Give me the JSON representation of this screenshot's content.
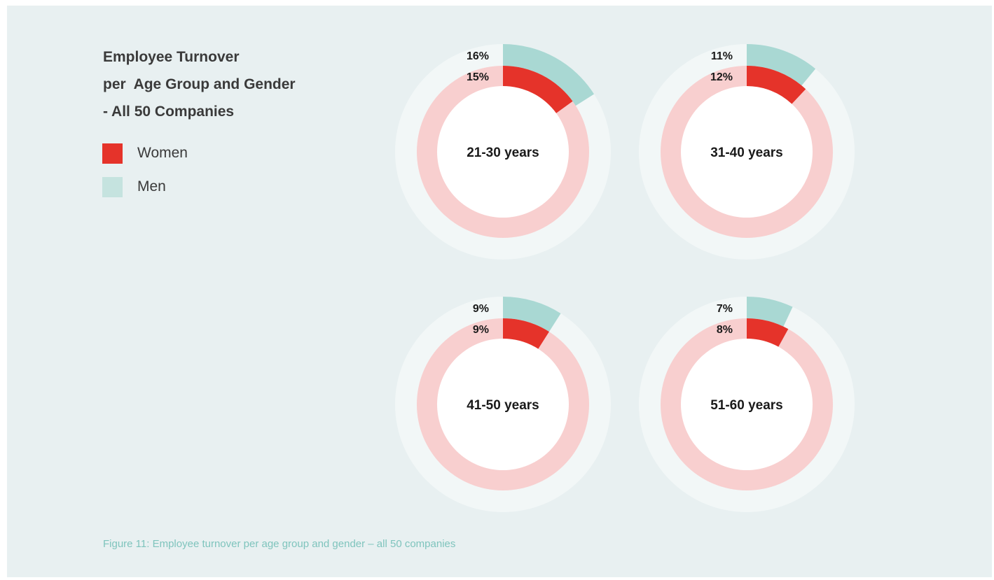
{
  "title_lines": [
    "Employee Turnover",
    "per  Age Group and Gender",
    "- All 50 Companies"
  ],
  "legend": [
    {
      "label": "Women",
      "color": "#e5332a"
    },
    {
      "label": "Men",
      "color": "#c5e3df"
    }
  ],
  "caption": "Figure 11: Employee turnover per age group and gender – all 50 companies",
  "colors": {
    "women_bar": "#e5332a",
    "women_track": "#f8cfcf",
    "men_bar": "#a9d8d3",
    "men_track": "#f2f7f7",
    "center": "#ffffff"
  },
  "chart_data": {
    "type": "radial-bar",
    "title": "Employee Turnover per Age Group and Gender - All 50 Companies",
    "groups": [
      {
        "label": "21-30 years",
        "men": 16,
        "women": 15,
        "men_label": "16%",
        "women_label": "15%"
      },
      {
        "label": "31-40 years",
        "men": 11,
        "women": 12,
        "men_label": "11%",
        "women_label": "12%"
      },
      {
        "label": "41-50 years",
        "men": 9,
        "women": 9,
        "men_label": "9%",
        "women_label": "9%"
      },
      {
        "label": "51-60 years",
        "men": 7,
        "women": 8,
        "men_label": "7%",
        "women_label": "8%"
      }
    ],
    "series": [
      {
        "name": "Women",
        "key": "women"
      },
      {
        "name": "Men",
        "key": "men"
      }
    ],
    "scale_max": 100
  }
}
